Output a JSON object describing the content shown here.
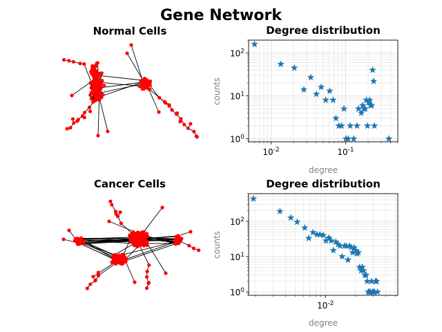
{
  "figure": {
    "title": "Gene Network"
  },
  "colors": {
    "node": "#ff0000",
    "edge": "#000000",
    "marker": "#1f77b4",
    "axis_label": "#808080",
    "grid": "#e0e0e0"
  },
  "panels": [
    {
      "title": "Normal Cells"
    },
    {
      "title": "Cancer Cells"
    }
  ],
  "chart_data": [
    {
      "type": "scatter",
      "title": "Degree distribution",
      "xlabel": "degree",
      "ylabel": "counts",
      "xscale": "log",
      "yscale": "log",
      "xlim": [
        0.005,
        0.5
      ],
      "ylim": [
        0.85,
        200
      ],
      "xticks": [
        {
          "value": 0.01,
          "label": "10^-2"
        },
        {
          "value": 0.1,
          "label": "10^-1"
        }
      ],
      "yticks": [
        {
          "value": 1,
          "label": "10^0"
        },
        {
          "value": 10,
          "label": "10^1"
        },
        {
          "value": 100,
          "label": "10^2"
        }
      ],
      "grid": true,
      "marker": "star",
      "points": [
        [
          0.006,
          160
        ],
        [
          0.0135,
          55
        ],
        [
          0.0205,
          45
        ],
        [
          0.0275,
          14
        ],
        [
          0.034,
          27
        ],
        [
          0.0405,
          11
        ],
        [
          0.047,
          16
        ],
        [
          0.054,
          8
        ],
        [
          0.061,
          13
        ],
        [
          0.068,
          8
        ],
        [
          0.074,
          3
        ],
        [
          0.081,
          2
        ],
        [
          0.088,
          2
        ],
        [
          0.095,
          5
        ],
        [
          0.101,
          1
        ],
        [
          0.108,
          1
        ],
        [
          0.115,
          2
        ],
        [
          0.128,
          1
        ],
        [
          0.142,
          2
        ],
        [
          0.149,
          5
        ],
        [
          0.162,
          4
        ],
        [
          0.169,
          6
        ],
        [
          0.176,
          5
        ],
        [
          0.183,
          5
        ],
        [
          0.189,
          8
        ],
        [
          0.196,
          2
        ],
        [
          0.203,
          7
        ],
        [
          0.21,
          8
        ],
        [
          0.216,
          6
        ],
        [
          0.223,
          6
        ],
        [
          0.23,
          40
        ],
        [
          0.237,
          22
        ],
        [
          0.243,
          2
        ],
        [
          0.38,
          1
        ]
      ]
    },
    {
      "type": "scatter",
      "title": "Degree distribution",
      "xlabel": "degree",
      "ylabel": "counts",
      "xscale": "log",
      "yscale": "log",
      "xlim": [
        0.0017,
        0.053
      ],
      "ylim": [
        0.8,
        600
      ],
      "xticks": [
        {
          "value": 0.01,
          "label": "10^-2"
        }
      ],
      "yticks": [
        {
          "value": 1,
          "label": "10^0"
        },
        {
          "value": 10,
          "label": "10^1"
        },
        {
          "value": 100,
          "label": "10^2"
        }
      ],
      "grid": true,
      "marker": "star",
      "points": [
        [
          0.0019,
          430
        ],
        [
          0.0035,
          190
        ],
        [
          0.0045,
          125
        ],
        [
          0.0052,
          95
        ],
        [
          0.0062,
          65
        ],
        [
          0.0068,
          33
        ],
        [
          0.0075,
          48
        ],
        [
          0.0082,
          42
        ],
        [
          0.0088,
          42
        ],
        [
          0.0095,
          40
        ],
        [
          0.0101,
          28
        ],
        [
          0.0108,
          34
        ],
        [
          0.0114,
          28
        ],
        [
          0.012,
          15
        ],
        [
          0.0127,
          26
        ],
        [
          0.0134,
          22
        ],
        [
          0.014,
          20
        ],
        [
          0.0147,
          10
        ],
        [
          0.0155,
          20
        ],
        [
          0.0161,
          20
        ],
        [
          0.0168,
          8
        ],
        [
          0.0174,
          20
        ],
        [
          0.0181,
          18
        ],
        [
          0.0187,
          13
        ],
        [
          0.0194,
          18
        ],
        [
          0.0201,
          15
        ],
        [
          0.0207,
          12
        ],
        [
          0.0214,
          13
        ],
        [
          0.022,
          5
        ],
        [
          0.0228,
          4
        ],
        [
          0.0234,
          5
        ],
        [
          0.0241,
          4
        ],
        [
          0.0248,
          3
        ],
        [
          0.0255,
          3
        ],
        [
          0.0262,
          2
        ],
        [
          0.0268,
          1
        ],
        [
          0.0275,
          1
        ],
        [
          0.0282,
          1
        ],
        [
          0.0289,
          2
        ],
        [
          0.0296,
          1
        ],
        [
          0.0303,
          1
        ],
        [
          0.031,
          1
        ],
        [
          0.0317,
          2
        ],
        [
          0.0325,
          2
        ],
        [
          0.0332,
          1
        ]
      ]
    }
  ]
}
